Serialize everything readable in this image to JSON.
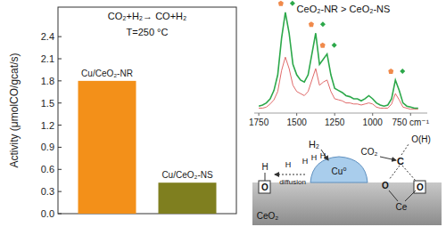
{
  "chart_data": [
    {
      "type": "bar",
      "title": "CO₂+H₂→ CO+H₂",
      "subtitle": "T=250 °C",
      "ylabel": "Activity (μmolCO/gcat/s)",
      "categories": [
        "Cu/CeO₂-NR",
        "Cu/CeO₂-NS"
      ],
      "values": [
        1.8,
        0.42
      ],
      "colors": [
        "#f39019",
        "#7f7f1f"
      ],
      "ylim": [
        0,
        2.8
      ],
      "yticks": [
        {
          "value": 0,
          "label": "0.0"
        },
        0.3,
        0.6,
        0.9,
        1.2,
        1.5,
        1.8,
        2.1,
        2.4
      ]
    },
    {
      "type": "line",
      "title": "CeO₂-NR > CeO₂-NS",
      "x": [
        1750,
        1725,
        1700,
        1675,
        1650,
        1625,
        1600,
        1575,
        1550,
        1525,
        1500,
        1475,
        1450,
        1425,
        1400,
        1375,
        1350,
        1325,
        1300,
        1275,
        1250,
        1225,
        1200,
        1175,
        1150,
        1125,
        1100,
        1075,
        1050,
        1025,
        1000,
        975,
        950,
        925,
        900,
        875,
        850,
        825,
        800,
        775,
        750,
        725,
        700
      ],
      "series": [
        {
          "color": "#2ca84a",
          "values": [
            0.05,
            0.06,
            0.08,
            0.12,
            0.2,
            0.35,
            0.7,
            0.95,
            0.75,
            0.45,
            0.35,
            0.3,
            0.28,
            0.35,
            0.55,
            0.75,
            0.45,
            0.5,
            0.55,
            0.35,
            0.22,
            0.2,
            0.18,
            0.15,
            0.14,
            0.12,
            0.12,
            0.1,
            0.12,
            0.15,
            0.12,
            0.08,
            0.06,
            0.05,
            0.06,
            0.12,
            0.3,
            0.2,
            0.08,
            0.05,
            0.04,
            0.03,
            0.03
          ]
        },
        {
          "color": "#e06a6a",
          "values": [
            0.03,
            0.03,
            0.04,
            0.07,
            0.11,
            0.19,
            0.39,
            0.52,
            0.41,
            0.25,
            0.19,
            0.17,
            0.15,
            0.19,
            0.3,
            0.41,
            0.25,
            0.28,
            0.3,
            0.19,
            0.12,
            0.11,
            0.1,
            0.08,
            0.08,
            0.07,
            0.07,
            0.06,
            0.07,
            0.08,
            0.07,
            0.04,
            0.03,
            0.03,
            0.03,
            0.07,
            0.17,
            0.11,
            0.04,
            0.03,
            0.02,
            0.02,
            0.02
          ]
        }
      ],
      "xlim": [
        1780,
        640
      ],
      "xticks": [
        1750,
        1500,
        1250,
        1000,
        {
          "value": 750,
          "label": "750 cm⁻¹"
        }
      ],
      "ylim": [
        0,
        1
      ],
      "tick_labels": "x"
    }
  ],
  "diagram": {
    "labels": [
      "H₂",
      "H",
      "H",
      "H",
      "H",
      "Cu⁰",
      "CeO₂",
      "diffusion",
      "H",
      "O",
      "CO₂",
      "O(H)",
      "C",
      "O",
      "O",
      "Ce"
    ]
  }
}
